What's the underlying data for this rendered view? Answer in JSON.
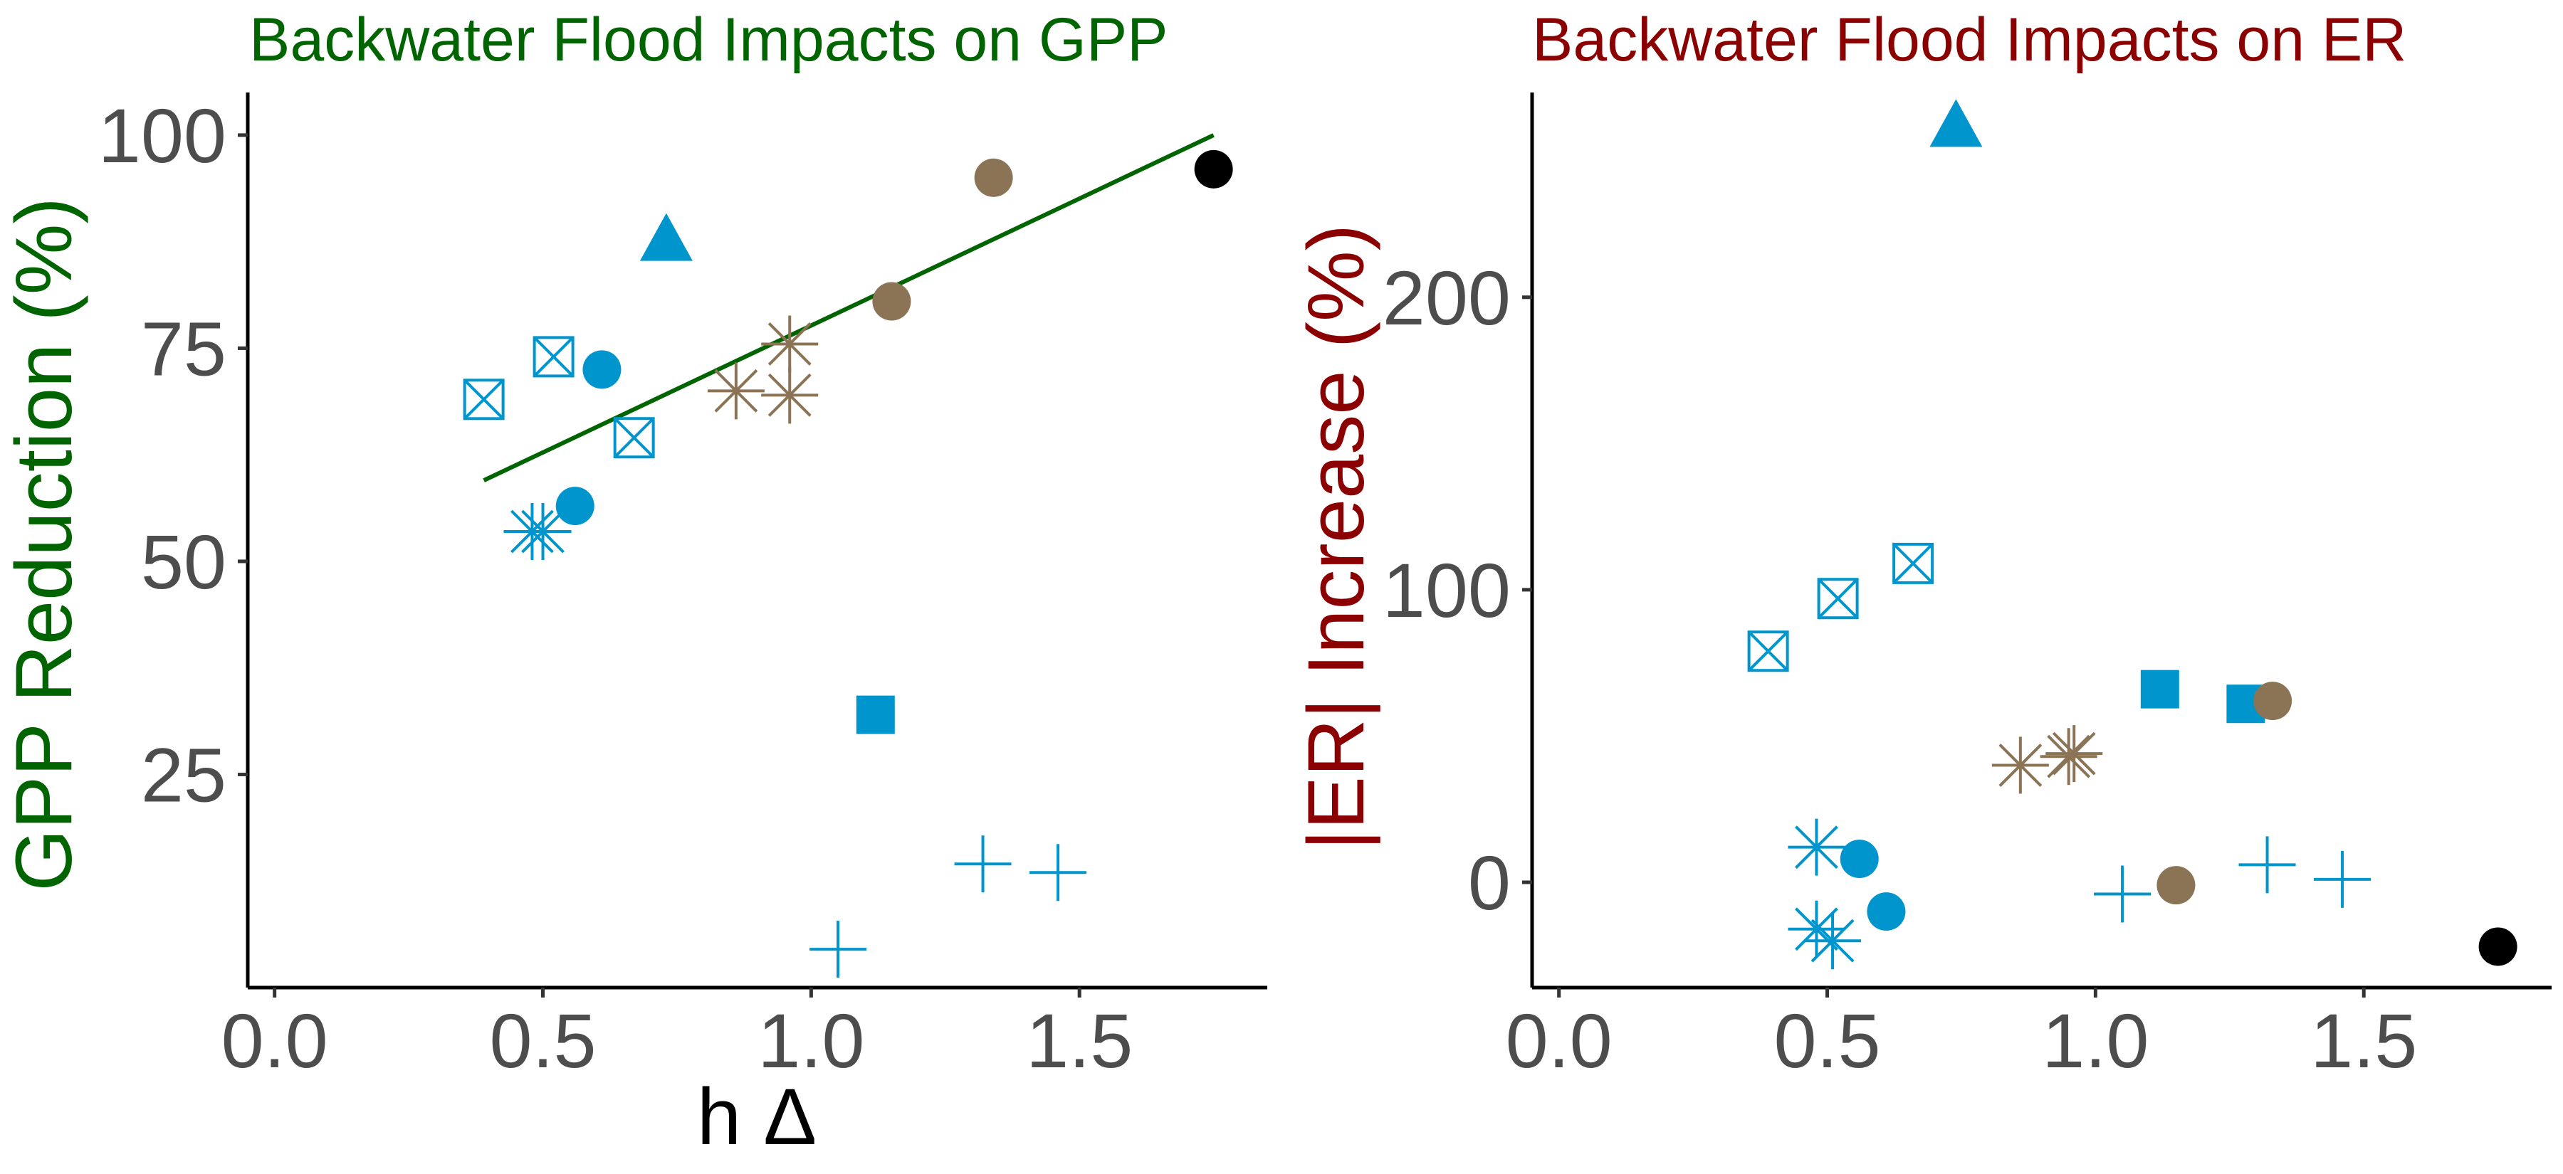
{
  "colors": {
    "blue": "#0096cd",
    "brown": "#8b7355",
    "black": "#000000",
    "green_title": "#006400",
    "red_title": "#8b0000",
    "fit_line": "#006400"
  },
  "chart_data": [
    {
      "type": "scatter",
      "title": "Backwater Flood Impacts on GPP",
      "xlabel": "h Δ",
      "ylabel": "GPP Reduction (%)",
      "xlim": [
        -0.05,
        1.85
      ],
      "ylim": [
        0,
        105
      ],
      "x_ticks": [
        0.0,
        0.5,
        1.0,
        1.5
      ],
      "x_tick_labels": [
        "0.0",
        "0.5",
        "1.0",
        "1.5"
      ],
      "y_ticks": [
        25,
        50,
        75,
        100
      ],
      "y_tick_labels": [
        "25",
        "50",
        "75",
        "100"
      ],
      "grid": false,
      "fit_line": {
        "x": [
          0.39,
          1.75
        ],
        "y": [
          59.5,
          100
        ]
      },
      "points": [
        {
          "x": 0.73,
          "y": 87.5,
          "shape": "triangle",
          "color": "blue"
        },
        {
          "x": 0.39,
          "y": 69,
          "shape": "boxx",
          "color": "blue"
        },
        {
          "x": 0.52,
          "y": 74,
          "shape": "boxx",
          "color": "blue"
        },
        {
          "x": 0.67,
          "y": 64.5,
          "shape": "boxx",
          "color": "blue"
        },
        {
          "x": 0.61,
          "y": 72.5,
          "shape": "circle",
          "color": "blue"
        },
        {
          "x": 0.56,
          "y": 56.5,
          "shape": "circle",
          "color": "blue"
        },
        {
          "x": 0.48,
          "y": 53.5,
          "shape": "asterisk",
          "color": "blue"
        },
        {
          "x": 0.5,
          "y": 53.5,
          "shape": "asterisk",
          "color": "blue"
        },
        {
          "x": 0.86,
          "y": 70,
          "shape": "asterisk",
          "color": "brown"
        },
        {
          "x": 0.96,
          "y": 69.5,
          "shape": "asterisk",
          "color": "brown"
        },
        {
          "x": 0.96,
          "y": 75.5,
          "shape": "asterisk",
          "color": "brown"
        },
        {
          "x": 1.15,
          "y": 80.5,
          "shape": "circle",
          "color": "brown"
        },
        {
          "x": 1.34,
          "y": 95,
          "shape": "circle",
          "color": "brown"
        },
        {
          "x": 1.75,
          "y": 96,
          "shape": "circle",
          "color": "black"
        },
        {
          "x": 1.12,
          "y": 32,
          "shape": "square",
          "color": "blue"
        },
        {
          "x": 1.32,
          "y": 14.5,
          "shape": "plus",
          "color": "blue"
        },
        {
          "x": 1.46,
          "y": 13.5,
          "shape": "plus",
          "color": "blue"
        },
        {
          "x": 1.05,
          "y": 4.5,
          "shape": "plus",
          "color": "blue"
        }
      ]
    },
    {
      "type": "scatter",
      "title": "Backwater Flood Impacts on ER",
      "xlabel": "",
      "ylabel": "|ER| Increase (%)",
      "xlim": [
        -0.05,
        1.85
      ],
      "ylim": [
        -36,
        270
      ],
      "x_ticks": [
        0.0,
        0.5,
        1.0,
        1.5
      ],
      "x_tick_labels": [
        "0.0",
        "0.5",
        "1.0",
        "1.5"
      ],
      "y_ticks": [
        0,
        100,
        200
      ],
      "y_tick_labels": [
        "0",
        "100",
        "200"
      ],
      "grid": false,
      "points": [
        {
          "x": 0.74,
          "y": 258,
          "shape": "triangle",
          "color": "blue"
        },
        {
          "x": 0.39,
          "y": 79,
          "shape": "boxx",
          "color": "blue"
        },
        {
          "x": 0.52,
          "y": 97,
          "shape": "boxx",
          "color": "blue"
        },
        {
          "x": 0.66,
          "y": 109,
          "shape": "boxx",
          "color": "blue"
        },
        {
          "x": 1.12,
          "y": 66,
          "shape": "square",
          "color": "blue"
        },
        {
          "x": 1.28,
          "y": 61,
          "shape": "square",
          "color": "blue"
        },
        {
          "x": 1.33,
          "y": 62,
          "shape": "circle",
          "color": "brown"
        },
        {
          "x": 0.86,
          "y": 40,
          "shape": "asterisk",
          "color": "brown"
        },
        {
          "x": 0.95,
          "y": 43,
          "shape": "asterisk",
          "color": "brown"
        },
        {
          "x": 0.96,
          "y": 44,
          "shape": "asterisk",
          "color": "brown"
        },
        {
          "x": 0.48,
          "y": 12,
          "shape": "asterisk",
          "color": "blue"
        },
        {
          "x": 0.48,
          "y": -16,
          "shape": "asterisk",
          "color": "blue"
        },
        {
          "x": 0.51,
          "y": -20,
          "shape": "asterisk",
          "color": "blue"
        },
        {
          "x": 0.56,
          "y": 8,
          "shape": "circle",
          "color": "blue"
        },
        {
          "x": 0.61,
          "y": -10,
          "shape": "circle",
          "color": "blue"
        },
        {
          "x": 1.15,
          "y": -1,
          "shape": "circle",
          "color": "brown"
        },
        {
          "x": 1.05,
          "y": -4,
          "shape": "plus",
          "color": "blue"
        },
        {
          "x": 1.32,
          "y": 6,
          "shape": "plus",
          "color": "blue"
        },
        {
          "x": 1.46,
          "y": 1,
          "shape": "plus",
          "color": "blue"
        },
        {
          "x": 1.75,
          "y": -22,
          "shape": "circle",
          "color": "black"
        }
      ]
    }
  ]
}
